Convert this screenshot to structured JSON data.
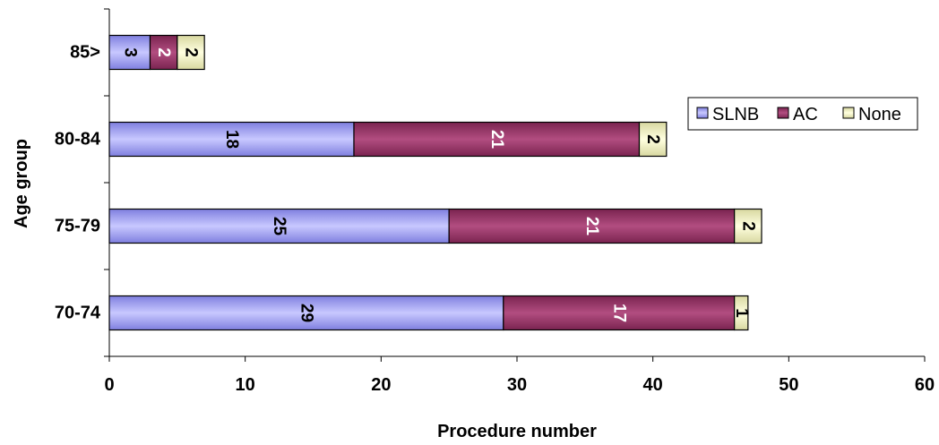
{
  "chart_data": {
    "type": "bar",
    "orientation": "horizontal",
    "stacked": true,
    "title": "",
    "xlabel": "Procedure number",
    "ylabel": "Age group",
    "xlim": [
      0,
      60
    ],
    "xticks": [
      0,
      10,
      20,
      30,
      40,
      50,
      60
    ],
    "categories": [
      "70-74",
      "75-79",
      "80-84",
      "85>"
    ],
    "series": [
      {
        "name": "SLNB",
        "values": [
          29,
          25,
          18,
          3
        ],
        "color": "#9999ff",
        "label_color": "#000000"
      },
      {
        "name": "AC",
        "values": [
          17,
          21,
          21,
          2
        ],
        "color": "#993366",
        "label_color": "#ffffff"
      },
      {
        "name": "None",
        "values": [
          1,
          2,
          2,
          2
        ],
        "color": "#ffffcc",
        "label_color": "#000000"
      }
    ],
    "legend_position": "right",
    "grid": false
  }
}
